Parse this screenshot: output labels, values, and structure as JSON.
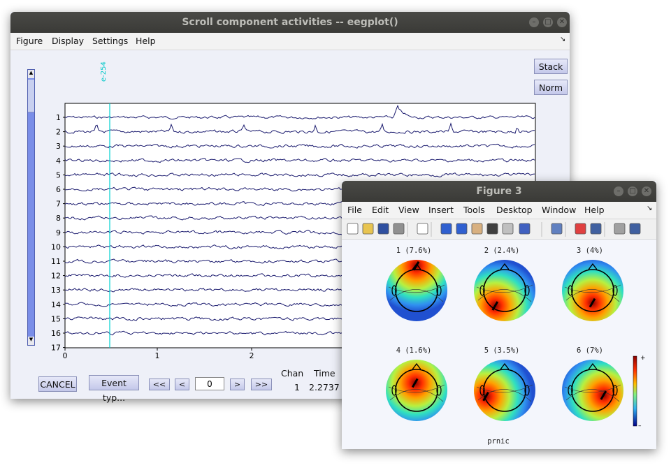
{
  "eegplot": {
    "title": "Scroll component activities -- eegplot()",
    "menu": [
      "Figure",
      "Display",
      "Settings",
      "Help"
    ],
    "stack_label": "Stack",
    "norm_label": "Norm",
    "event_label": "e-254",
    "channels": [
      "1",
      "2",
      "3",
      "4",
      "5",
      "6",
      "7",
      "8",
      "9",
      "10",
      "11",
      "12",
      "13",
      "14",
      "15",
      "16",
      "17"
    ],
    "x_ticks": [
      "0",
      "1",
      "2"
    ],
    "cancel_label": "CANCEL",
    "event_type_label": "Event typ...",
    "nav": {
      "first": "<<",
      "prev": "<",
      "value": "0",
      "next": ">",
      "last": ">>"
    },
    "readout": {
      "chan_header": "Chan",
      "time_header": "Time",
      "chan_value": "1",
      "time_value": "2.2737"
    },
    "colors": {
      "trace": "#1a1a6e",
      "event_line": "#00d0d0",
      "slider": "#7a8ee8"
    }
  },
  "figure3": {
    "title": "Figure 3",
    "menu": [
      "File",
      "Edit",
      "View",
      "Insert",
      "Tools",
      "Desktop",
      "Window",
      "Help"
    ],
    "toolbar_icons": [
      "new-file-icon",
      "open-folder-icon",
      "save-icon",
      "print-icon",
      "pointer-icon",
      "zoom-in-icon",
      "zoom-out-icon",
      "pan-hand-icon",
      "rotate-3d-icon",
      "data-cursor-icon",
      "brush-icon",
      "link-plot-icon",
      "colorbar-icon",
      "legend-icon",
      "hide-plot-tools-icon",
      "show-plot-tools-icon"
    ],
    "topomaps": [
      {
        "label": "1 (7.6%)"
      },
      {
        "label": "2 (2.4%)"
      },
      {
        "label": "3 (4%)"
      },
      {
        "label": "4 (1.6%)"
      },
      {
        "label": "5 (3.5%)"
      },
      {
        "label": "6 (7%)"
      }
    ],
    "colorbar": {
      "plus": "+",
      "minus": "–"
    },
    "footer": "prnic"
  }
}
